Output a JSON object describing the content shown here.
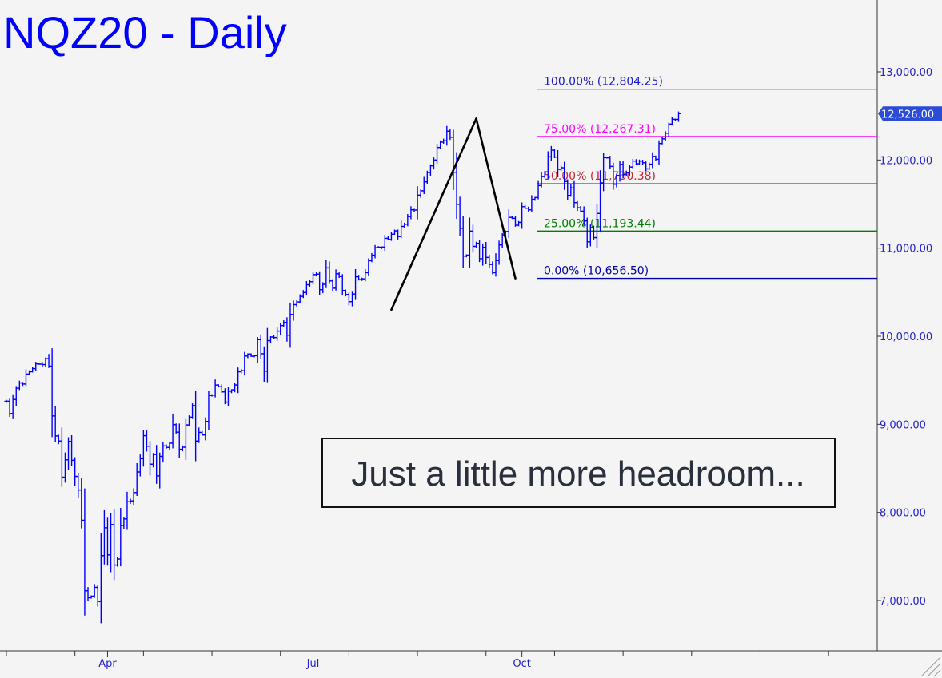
{
  "chart_data": {
    "type": "ohlc",
    "title": "NQZ20 - Daily",
    "ylim": [
      6500,
      13800
    ],
    "y_ticks": [
      {
        "value": 7000,
        "label": "7,000.00"
      },
      {
        "value": 8000,
        "label": "8,000.00"
      },
      {
        "value": 9000,
        "label": "9,000.00"
      },
      {
        "value": 10000,
        "label": "10,000.00"
      },
      {
        "value": 11000,
        "label": "11,000.00"
      },
      {
        "value": 12000,
        "label": "12,000.00"
      },
      {
        "value": 13000,
        "label": "13,000.00"
      }
    ],
    "x_ticks": [
      {
        "label": "Apr",
        "bar": 31
      },
      {
        "label": "Jul",
        "bar": 94
      },
      {
        "label": "Oct",
        "bar": 158
      }
    ],
    "last_price": {
      "value": 12526,
      "label": "12,526.00",
      "color": "#2b4cd6"
    },
    "price_color": "#0000ff",
    "fib_levels": [
      {
        "label": "100.00% (12,804.25)",
        "value": 12804.25,
        "color": "#1a1acc"
      },
      {
        "label": "75.00% (12,267.31)",
        "value": 12267.31,
        "color": "#ff00ff"
      },
      {
        "label": "50.00% (11,730.38)",
        "value": 11730.38,
        "color": "#cc2233"
      },
      {
        "label": "25.00% (11,193.44)",
        "value": 11193.44,
        "color": "#008000"
      },
      {
        "label": "0.00% (10,656.50)",
        "value": 10656.5,
        "color": "#0000aa"
      }
    ],
    "pattern_points": [
      {
        "bar": 118,
        "value": 10300
      },
      {
        "bar": 144,
        "value": 12470
      },
      {
        "bar": 156,
        "value": 10656.5
      }
    ],
    "annotation": "Just a little more headroom...",
    "series_closes": [
      9262,
      9123,
      9282,
      9410,
      9469,
      9457,
      9570,
      9597,
      9632,
      9686,
      9683,
      9678,
      9745,
      9660,
      9095,
      8868,
      8811,
      8400,
      8597,
      8806,
      8592,
      8409,
      8254,
      7911,
      7111,
      7032,
      7050,
      7150,
      6989,
      7509,
      7826,
      7518,
      7862,
      7403,
      7471,
      7852,
      7926,
      8121,
      8131,
      8225,
      8459,
      8610,
      8871,
      8752,
      8548,
      8658,
      8415,
      8636,
      8755,
      8738,
      8786,
      8996,
      8911,
      8717,
      8740,
      8993,
      9081,
      9213,
      8810,
      8908,
      8879,
      9033,
      9327,
      9331,
      9446,
      9427,
      9368,
      9252,
      9375,
      9392,
      9447,
      9597,
      9609,
      9775,
      9798,
      9773,
      9779,
      9961,
      9801,
      9603,
      9950,
      9991,
      9985,
      10058,
      10121,
      10157,
      10012,
      10247,
      10358,
      10389,
      10452,
      10496,
      10584,
      10619,
      10699,
      10705,
      10528,
      10589,
      10776,
      10627,
      10545,
      10708,
      10678,
      10519,
      10474,
      10392,
      10479,
      10674,
      10642,
      10651,
      10721,
      10857,
      10919,
      11005,
      11010,
      11012,
      11111,
      11098,
      11158,
      11196,
      11131,
      11246,
      11271,
      11358,
      11435,
      11432,
      11601,
      11650,
      11752,
      11858,
      11934,
      12000,
      12142,
      12203,
      12218,
      12327,
      12258,
      11860,
      11497,
      11225,
      10909,
      10920,
      11193,
      11020,
      11054,
      10880,
      11009,
      10894,
      10815,
      10721,
      10859,
      11036,
      11150,
      11188,
      11349,
      11338,
      11260,
      11292,
      11470,
      11453,
      11434,
      11553,
      11574,
      11710,
      11812,
      11865,
      12036,
      12111,
      12033,
      11894,
      11912,
      11756,
      11598,
      11683,
      11516,
      11458,
      11419,
      11308,
      11071,
      11233,
      11119,
      11393,
      11740,
      12027,
      12025,
      11927,
      11725,
      11824,
      11949,
      11838,
      11856,
      11920,
      11988,
      11957,
      11987,
      11969,
      11899,
      11952,
      12040,
      12008,
      12187,
      12240,
      12304,
      12408,
      12462,
      12461,
      12526
    ]
  }
}
